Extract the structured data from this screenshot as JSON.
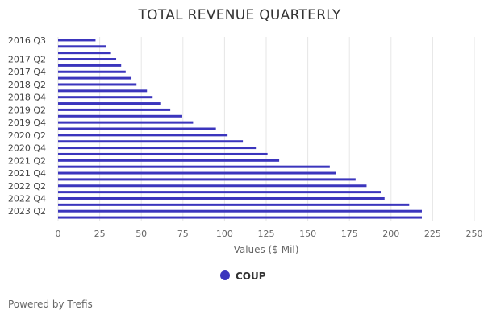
{
  "chart_data": {
    "type": "bar",
    "orientation": "horizontal",
    "title": "TOTAL REVENUE QUARTERLY",
    "xlabel": "Values ($ Mil)",
    "xlim": [
      0,
      250
    ],
    "x_ticks": [
      0,
      25,
      50,
      75,
      100,
      125,
      150,
      175,
      200,
      225,
      250
    ],
    "grid": true,
    "legend_position": "bottom-center",
    "categories": [
      "2016 Q3",
      "2016 Q4",
      "2017 Q1",
      "2017 Q2",
      "2017 Q3",
      "2017 Q4",
      "2018 Q1",
      "2018 Q2",
      "2018 Q3",
      "2018 Q4",
      "2019 Q1",
      "2019 Q2",
      "2019 Q3",
      "2019 Q4",
      "2020 Q1",
      "2020 Q2",
      "2020 Q3",
      "2020 Q4",
      "2021 Q1",
      "2021 Q2",
      "2021 Q3",
      "2021 Q4",
      "2022 Q1",
      "2022 Q2",
      "2022 Q3",
      "2022 Q4",
      "2023 Q1",
      "2023 Q2",
      "2023 Q3"
    ],
    "shown_category_labels": [
      "2016 Q3",
      "2017 Q2",
      "2017 Q4",
      "2018 Q2",
      "2018 Q4",
      "2019 Q2",
      "2019 Q4",
      "2020 Q2",
      "2020 Q4",
      "2021 Q2",
      "2021 Q4",
      "2022 Q2",
      "2022 Q4",
      "2023 Q2"
    ],
    "series": [
      {
        "name": "COUP",
        "color": "#3b35bd",
        "values": [
          22.5,
          28.9,
          31.3,
          34.9,
          37.9,
          40.6,
          44.1,
          47.1,
          53.4,
          56.8,
          61.4,
          67.4,
          74.6,
          81.1,
          94.8,
          101.8,
          111.0,
          118.8,
          125.8,
          132.8,
          163.2,
          166.8,
          178.7,
          185.3,
          193.8,
          196.1,
          210.9,
          218.5,
          218.5
        ]
      }
    ]
  },
  "footer": {
    "credit": "Powered by Trefis"
  }
}
